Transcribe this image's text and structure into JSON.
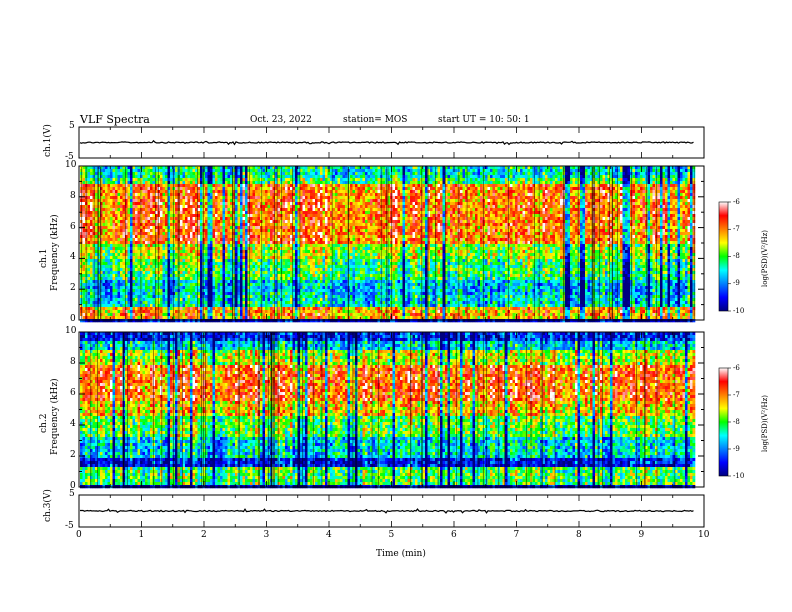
{
  "header": {
    "title": "VLF Spectra",
    "date": "Oct. 23, 2022",
    "station": "station= MOS",
    "start": "start  UT =   10: 50: 1"
  },
  "chart_data": [
    {
      "type": "line",
      "name": "ch1-waveform",
      "ylabel": "ch.1(V)",
      "ylim": [
        -5,
        5
      ],
      "y_ticks": [
        "5",
        "-5"
      ],
      "xlim": [
        0,
        10
      ],
      "values_approx": 0
    },
    {
      "type": "heatmap",
      "name": "ch1-spectrogram",
      "ylabel_line1": "ch.1",
      "ylabel_line2": "Frequency (kHz)",
      "ylim": [
        0,
        10
      ],
      "y_ticks": [
        "0",
        "2",
        "4",
        "6",
        "8",
        "10"
      ],
      "xlim": [
        0,
        9.85
      ],
      "colorbar": {
        "min": -10,
        "max": -6,
        "ticks": [
          "-6",
          "-7",
          "-8",
          "-9",
          "-10"
        ],
        "label": "log(PSD)(V²/Hz)"
      }
    },
    {
      "type": "heatmap",
      "name": "ch2-spectrogram",
      "ylabel_line1": "ch.2",
      "ylabel_line2": "Frequency (kHz)",
      "ylim": [
        0,
        10
      ],
      "y_ticks": [
        "0",
        "2",
        "4",
        "6",
        "8",
        "10"
      ],
      "xlim": [
        0,
        9.85
      ],
      "colorbar": {
        "min": -10,
        "max": -6,
        "ticks": [
          "-6",
          "-7",
          "-8",
          "-9",
          "-10"
        ],
        "label": "log(PSD)(V²/Hz)"
      }
    },
    {
      "type": "line",
      "name": "ch3-waveform",
      "ylabel": "ch.3(V)",
      "ylim": [
        -5,
        5
      ],
      "y_ticks": [
        "5",
        "-5"
      ],
      "xlim": [
        0,
        10
      ],
      "values_approx": 0
    }
  ],
  "x_axis": {
    "label": "Time  (min)",
    "ticks": [
      "0",
      "1",
      "2",
      "3",
      "4",
      "5",
      "6",
      "7",
      "8",
      "9",
      "10"
    ]
  }
}
